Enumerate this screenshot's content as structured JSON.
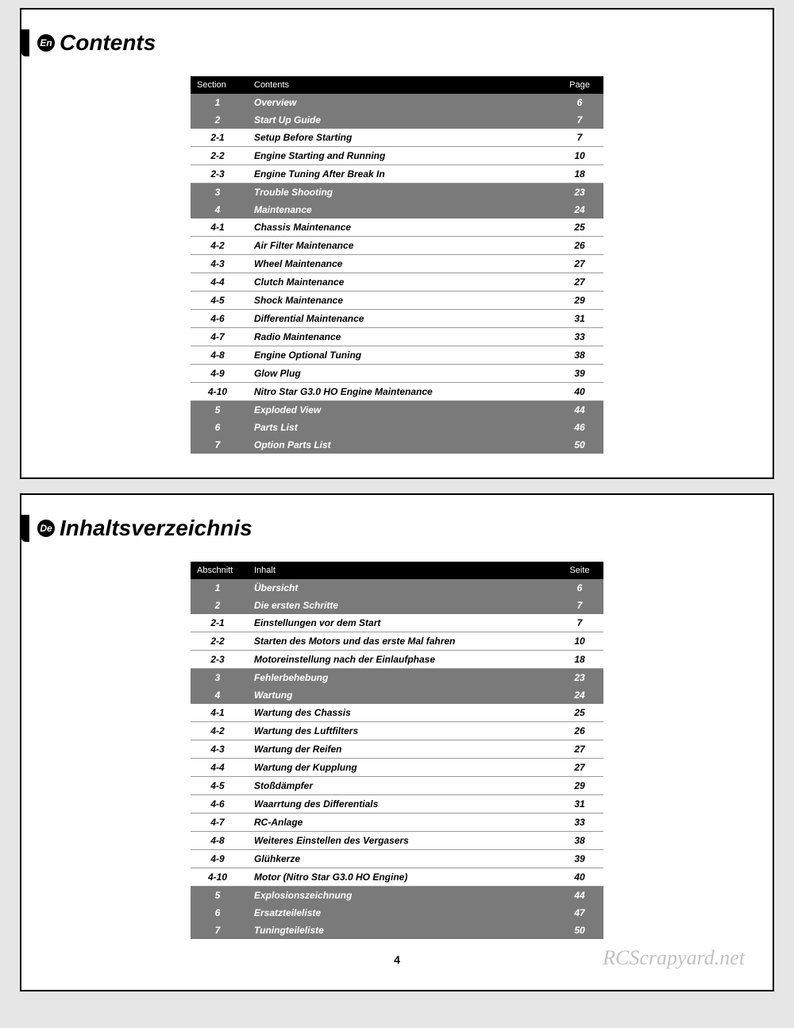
{
  "pageNumber": "4",
  "watermark": "RCScrapyard.net",
  "colors": {
    "page_bg": "#e6e6e6",
    "panel_bg": "#ffffff",
    "panel_border": "#000000",
    "header_bg": "#000000",
    "header_fg": "#ffffff",
    "chapter_bg": "#7a7a7a",
    "chapter_fg": "#ffffff",
    "sub_fg": "#000000",
    "watermark_fg": "rgba(120,120,120,0.45)"
  },
  "panels": [
    {
      "lang": "En",
      "title": "Contents",
      "columns": {
        "section": "Section",
        "content": "Contents",
        "page": "Page"
      },
      "rows": [
        {
          "type": "chapter",
          "section": "1",
          "content": "Overview",
          "page": "6"
        },
        {
          "type": "chapter",
          "section": "2",
          "content": "Start Up Guide",
          "page": "7"
        },
        {
          "type": "sub",
          "section": "2-1",
          "content": "Setup Before Starting",
          "page": "7"
        },
        {
          "type": "sub",
          "section": "2-2",
          "content": "Engine Starting and Running",
          "page": "10"
        },
        {
          "type": "sub",
          "section": "2-3",
          "content": "Engine Tuning After Break In",
          "page": "18"
        },
        {
          "type": "chapter",
          "section": "3",
          "content": "Trouble Shooting",
          "page": "23"
        },
        {
          "type": "chapter",
          "section": "4",
          "content": "Maintenance",
          "page": "24"
        },
        {
          "type": "sub",
          "section": "4-1",
          "content": "Chassis Maintenance",
          "page": "25"
        },
        {
          "type": "sub",
          "section": "4-2",
          "content": "Air Filter Maintenance",
          "page": "26"
        },
        {
          "type": "sub",
          "section": "4-3",
          "content": "Wheel Maintenance",
          "page": "27"
        },
        {
          "type": "sub",
          "section": "4-4",
          "content": "Clutch Maintenance",
          "page": "27"
        },
        {
          "type": "sub",
          "section": "4-5",
          "content": "Shock Maintenance",
          "page": "29"
        },
        {
          "type": "sub",
          "section": "4-6",
          "content": "Differential Maintenance",
          "page": "31"
        },
        {
          "type": "sub",
          "section": "4-7",
          "content": "Radio Maintenance",
          "page": "33"
        },
        {
          "type": "sub",
          "section": "4-8",
          "content": "Engine Optional Tuning",
          "page": "38"
        },
        {
          "type": "sub",
          "section": "4-9",
          "content": "Glow Plug",
          "page": "39"
        },
        {
          "type": "sub",
          "section": "4-10",
          "content": "Nitro Star G3.0 HO Engine Maintenance",
          "page": "40"
        },
        {
          "type": "chapter",
          "section": "5",
          "content": "Exploded View",
          "page": "44"
        },
        {
          "type": "chapter",
          "section": "6",
          "content": "Parts List",
          "page": "46"
        },
        {
          "type": "chapter",
          "section": "7",
          "content": "Option Parts List",
          "page": "50"
        }
      ]
    },
    {
      "lang": "De",
      "title": "Inhaltsverzeichnis",
      "columns": {
        "section": "Abschnitt",
        "content": "Inhalt",
        "page": "Seite"
      },
      "rows": [
        {
          "type": "chapter",
          "section": "1",
          "content": "Übersicht",
          "page": "6"
        },
        {
          "type": "chapter",
          "section": "2",
          "content": "Die ersten Schritte",
          "page": "7"
        },
        {
          "type": "sub",
          "section": "2-1",
          "content": "Einstellungen vor dem Start",
          "page": "7"
        },
        {
          "type": "sub",
          "section": "2-2",
          "content": "Starten des Motors und das erste Mal fahren",
          "page": "10"
        },
        {
          "type": "sub",
          "section": "2-3",
          "content": "Motoreinstellung nach der Einlaufphase",
          "page": "18"
        },
        {
          "type": "chapter",
          "section": "3",
          "content": "Fehlerbehebung",
          "page": "23"
        },
        {
          "type": "chapter",
          "section": "4",
          "content": "Wartung",
          "page": "24"
        },
        {
          "type": "sub",
          "section": "4-1",
          "content": "Wartung des Chassis",
          "page": "25"
        },
        {
          "type": "sub",
          "section": "4-2",
          "content": "Wartung des Luftfilters",
          "page": "26"
        },
        {
          "type": "sub",
          "section": "4-3",
          "content": "Wartung der Reifen",
          "page": "27"
        },
        {
          "type": "sub",
          "section": "4-4",
          "content": "Wartung der Kupplung",
          "page": "27"
        },
        {
          "type": "sub",
          "section": "4-5",
          "content": "Stoßdämpfer",
          "page": "29"
        },
        {
          "type": "sub",
          "section": "4-6",
          "content": "Waarrtung des Differentials",
          "page": "31"
        },
        {
          "type": "sub",
          "section": "4-7",
          "content": "RC-Anlage",
          "page": "33"
        },
        {
          "type": "sub",
          "section": "4-8",
          "content": "Weiteres Einstellen des Vergasers",
          "page": "38"
        },
        {
          "type": "sub",
          "section": "4-9",
          "content": "Glühkerze",
          "page": "39"
        },
        {
          "type": "sub",
          "section": "4-10",
          "content": "Motor (Nitro Star G3.0 HO Engine)",
          "page": "40"
        },
        {
          "type": "chapter",
          "section": "5",
          "content": "Explosionszeichnung",
          "page": "44"
        },
        {
          "type": "chapter",
          "section": "6",
          "content": "Ersatzteileliste",
          "page": "47"
        },
        {
          "type": "chapter",
          "section": "7",
          "content": "Tuningteileliste",
          "page": "50"
        }
      ]
    }
  ]
}
